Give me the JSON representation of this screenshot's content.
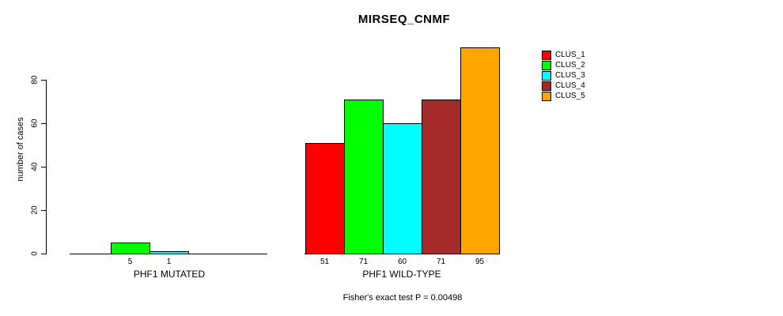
{
  "chart_data": {
    "type": "bar",
    "title": "MIRSEQ_CNMF",
    "ylabel": "number of cases",
    "annotation": "Fisher's exact test P = 0.00498",
    "categories": [
      "PHF1 MUTATED",
      "PHF1 WILD-TYPE"
    ],
    "series": [
      {
        "name": "CLUS_1",
        "color": "#FF0000",
        "values": [
          0,
          51
        ]
      },
      {
        "name": "CLUS_2",
        "color": "#00FF00",
        "values": [
          5,
          71
        ]
      },
      {
        "name": "CLUS_3",
        "color": "#00FFFF",
        "values": [
          1,
          60
        ]
      },
      {
        "name": "CLUS_4",
        "color": "#A52A2A",
        "values": [
          0,
          71
        ]
      },
      {
        "name": "CLUS_5",
        "color": "#FFA500",
        "values": [
          0,
          95
        ]
      }
    ],
    "yticks": [
      0,
      20,
      40,
      60,
      80
    ],
    "ylim": [
      0,
      95
    ],
    "grid": false,
    "legend_position": "right",
    "bar_value_labels_shown_for_zero": false,
    "axis_color": "#000000",
    "bar_border_color": "#000000"
  }
}
